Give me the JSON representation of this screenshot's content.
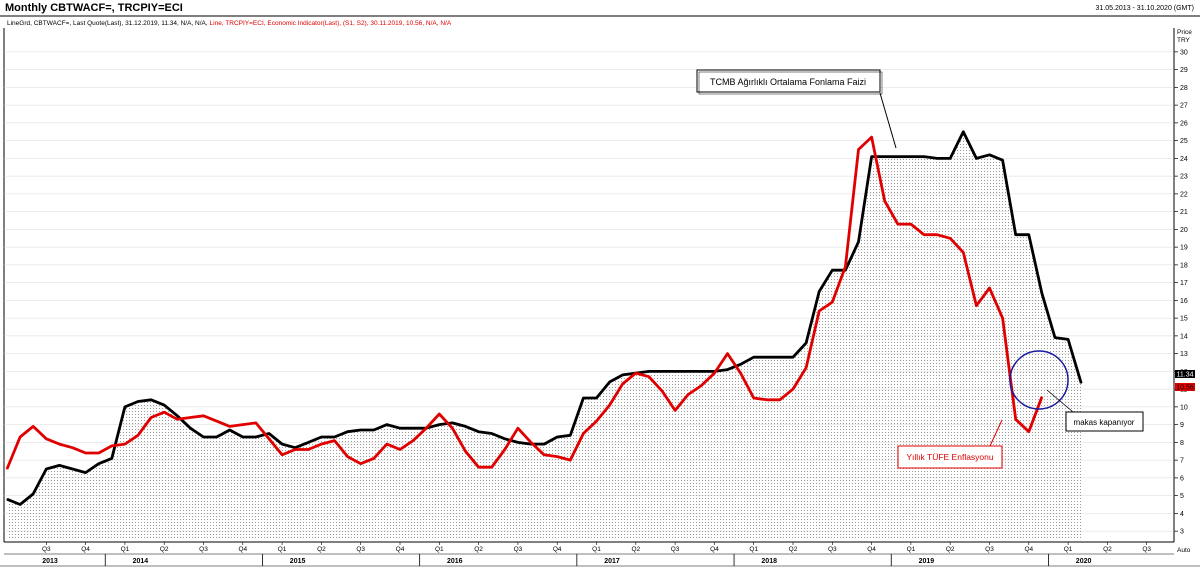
{
  "header": {
    "title": "Monthly CBTWACF=, TRCPIY=ECI",
    "date_range": "31.05.2013 - 31.10.2020 (GMT)",
    "legend_black": "LineGrd, CBTWACF=, Last Quote(Last), 31.12.2019, 11.34, N/A, N/A,",
    "legend_red": "Line, TRCPIY=ECI, Economic Indicator(Last), (S1, S2), 30.11.2019, 10.56, N/A, N/A"
  },
  "colors": {
    "series1": "#000000",
    "series2": "#e00000",
    "annotation_circle": "#1a1aa0",
    "grid": "#d8d8d8"
  },
  "annotations": {
    "funding_rate_label": "TCMB Ağırlıklı Ortalama Fonlama Faizi",
    "cpi_label": "Yıllık TÜFE Enflasyonu",
    "gap_label": "makas kapanıyor"
  },
  "axis": {
    "price_label": "Price",
    "currency_label": "TRY",
    "auto_label": "Auto",
    "last_value_black": "11.34",
    "last_value_red": "10.56"
  },
  "chart_data": {
    "type": "line",
    "title": "Monthly CBTWACF=, TRCPIY=ECI",
    "date_start": "2013-05",
    "ylim": [
      2.5,
      31
    ],
    "y_ticks": [
      3,
      4,
      5,
      6,
      7,
      8,
      9,
      10,
      11,
      12,
      13,
      14,
      15,
      16,
      17,
      18,
      19,
      20,
      21,
      22,
      23,
      24,
      25,
      26,
      27,
      28,
      29,
      30
    ],
    "year_labels": [
      "2013",
      "2014",
      "2015",
      "2016",
      "2017",
      "2018",
      "2019",
      "2020"
    ],
    "quarter_ticks": [
      {
        "label": "Q3",
        "date": "2013-08"
      },
      {
        "label": "Q4",
        "date": "2013-11"
      },
      {
        "label": "Q1",
        "date": "2014-02"
      },
      {
        "label": "Q2",
        "date": "2014-05"
      },
      {
        "label": "Q3",
        "date": "2014-08"
      },
      {
        "label": "Q4",
        "date": "2014-11"
      },
      {
        "label": "Q1",
        "date": "2015-02"
      },
      {
        "label": "Q2",
        "date": "2015-05"
      },
      {
        "label": "Q3",
        "date": "2015-08"
      },
      {
        "label": "Q4",
        "date": "2015-11"
      },
      {
        "label": "Q1",
        "date": "2016-02"
      },
      {
        "label": "Q2",
        "date": "2016-05"
      },
      {
        "label": "Q3",
        "date": "2016-08"
      },
      {
        "label": "Q4",
        "date": "2016-11"
      },
      {
        "label": "Q1",
        "date": "2017-02"
      },
      {
        "label": "Q2",
        "date": "2017-05"
      },
      {
        "label": "Q3",
        "date": "2017-08"
      },
      {
        "label": "Q4",
        "date": "2017-11"
      },
      {
        "label": "Q1",
        "date": "2018-02"
      },
      {
        "label": "Q2",
        "date": "2018-05"
      },
      {
        "label": "Q3",
        "date": "2018-08"
      },
      {
        "label": "Q4",
        "date": "2018-11"
      },
      {
        "label": "Q1",
        "date": "2019-02"
      },
      {
        "label": "Q2",
        "date": "2019-05"
      },
      {
        "label": "Q3",
        "date": "2019-08"
      },
      {
        "label": "Q4",
        "date": "2019-11"
      },
      {
        "label": "Q1",
        "date": "2020-02"
      },
      {
        "label": "Q2",
        "date": "2020-05"
      },
      {
        "label": "Q3",
        "date": "2020-08"
      },
      {
        "label": "Q4",
        "date": "2020-11"
      }
    ],
    "series": [
      {
        "name": "CBTWACF=",
        "style": "area-line",
        "values": [
          4.8,
          4.5,
          5.1,
          6.5,
          6.7,
          6.5,
          6.3,
          6.8,
          7.1,
          10.0,
          10.3,
          10.4,
          10.1,
          9.5,
          8.8,
          8.3,
          8.3,
          8.7,
          8.3,
          8.3,
          8.5,
          7.9,
          7.7,
          8.0,
          8.3,
          8.3,
          8.6,
          8.7,
          8.7,
          9.0,
          8.8,
          8.8,
          8.8,
          9.0,
          9.1,
          8.9,
          8.6,
          8.5,
          8.2,
          8.0,
          7.9,
          7.9,
          8.3,
          8.4,
          10.5,
          10.5,
          11.4,
          11.8,
          11.9,
          12.0,
          12.0,
          12.0,
          12.0,
          12.0,
          12.0,
          12.1,
          12.4,
          12.8,
          12.8,
          12.8,
          12.8,
          13.6,
          16.5,
          17.7,
          17.7,
          19.3,
          24.1,
          24.1,
          24.1,
          24.1,
          24.1,
          24.0,
          24.0,
          25.5,
          24.0,
          24.2,
          23.9,
          19.7,
          19.7,
          16.4,
          13.9,
          13.8,
          11.34
        ],
        "color": "#000000"
      },
      {
        "name": "TRCPIY=ECI",
        "style": "line",
        "values": [
          6.5,
          8.3,
          8.9,
          8.2,
          7.9,
          7.7,
          7.4,
          7.4,
          7.8,
          7.9,
          8.4,
          9.4,
          9.7,
          9.3,
          9.4,
          9.5,
          9.2,
          8.9,
          9.0,
          9.1,
          8.2,
          7.3,
          7.6,
          7.6,
          7.9,
          8.1,
          7.2,
          6.8,
          7.1,
          7.9,
          7.6,
          8.1,
          8.8,
          9.6,
          8.8,
          7.5,
          6.6,
          6.6,
          7.6,
          8.8,
          8.0,
          7.3,
          7.2,
          7.0,
          8.5,
          9.2,
          10.1,
          11.3,
          11.9,
          11.7,
          10.9,
          9.8,
          10.7,
          11.2,
          11.9,
          13.0,
          11.9,
          10.5,
          10.4,
          10.4,
          11.0,
          12.2,
          15.4,
          15.9,
          17.9,
          24.5,
          25.2,
          21.6,
          20.3,
          20.3,
          19.7,
          19.7,
          19.5,
          18.7,
          15.7,
          16.7,
          15.0,
          9.3,
          8.6,
          10.56
        ],
        "color": "#e00000"
      }
    ]
  }
}
